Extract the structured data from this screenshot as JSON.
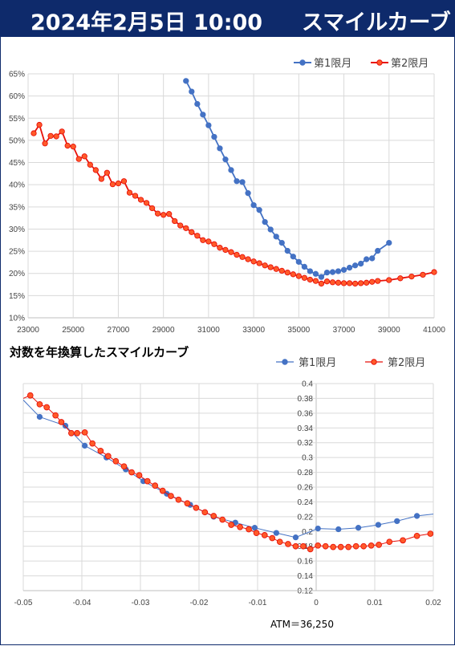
{
  "header": {
    "date": "2024年2月5日 10:00",
    "title": "スマイルカーブ"
  },
  "colors": {
    "header_bg": "#0e2a6b",
    "series1": "#4472c4",
    "series2": "#e8110a"
  },
  "chart_data": [
    {
      "type": "line",
      "title": "",
      "xlim": [
        23000,
        41000
      ],
      "ylim": [
        10,
        65
      ],
      "x_ticks": [
        "23000",
        "25000",
        "27000",
        "29000",
        "31000",
        "33000",
        "35000",
        "37000",
        "39000",
        "41000"
      ],
      "y_ticks": [
        "10%",
        "15%",
        "20%",
        "25%",
        "30%",
        "35%",
        "40%",
        "45%",
        "50%",
        "55%",
        "60%",
        "65%"
      ],
      "series": [
        {
          "name": "第1限月",
          "x": [
            30000,
            30250,
            30500,
            30750,
            31000,
            31250,
            31500,
            31750,
            32000,
            32250,
            32500,
            32750,
            33000,
            33250,
            33500,
            33750,
            34000,
            34250,
            34500,
            34750,
            35000,
            35250,
            35500,
            35750,
            36000,
            36250,
            36500,
            36750,
            37000,
            37250,
            37500,
            37750,
            38000,
            38250,
            38500,
            39000
          ],
          "y": [
            63.4,
            61.0,
            58.2,
            55.8,
            53.4,
            50.8,
            48.2,
            45.7,
            43.3,
            40.8,
            40.6,
            38.1,
            35.4,
            34.3,
            31.6,
            29.9,
            28.3,
            26.9,
            25.1,
            23.8,
            22.6,
            21.5,
            20.5,
            19.9,
            19.2,
            20.2,
            20.3,
            20.5,
            20.8,
            21.3,
            21.8,
            22.2,
            23.2,
            23.4,
            25.1,
            26.9
          ]
        },
        {
          "name": "第2限月",
          "x": [
            23250,
            23500,
            23750,
            24000,
            24250,
            24500,
            24750,
            25000,
            25250,
            25500,
            25750,
            26000,
            26250,
            26500,
            26750,
            27000,
            27250,
            27500,
            27750,
            28000,
            28250,
            28500,
            28750,
            29000,
            29250,
            29500,
            29750,
            30000,
            30250,
            30500,
            30750,
            31000,
            31250,
            31500,
            31750,
            32000,
            32250,
            32500,
            32750,
            33000,
            33250,
            33500,
            33750,
            34000,
            34250,
            34500,
            34750,
            35000,
            35250,
            35500,
            35750,
            36000,
            36250,
            36500,
            36750,
            37000,
            37250,
            37500,
            37750,
            38000,
            38250,
            38500,
            39000,
            39500,
            40000,
            40500,
            41000
          ],
          "y": [
            51.6,
            53.5,
            49.3,
            51.0,
            50.9,
            52.0,
            48.8,
            48.6,
            45.8,
            46.4,
            44.5,
            43.3,
            41.3,
            42.7,
            40.1,
            40.3,
            40.8,
            38.2,
            37.5,
            36.6,
            35.9,
            34.7,
            33.5,
            33.2,
            33.4,
            31.8,
            30.8,
            30.2,
            29.3,
            28.5,
            27.5,
            27.2,
            26.6,
            25.8,
            25.3,
            24.8,
            24.2,
            23.7,
            23.2,
            22.7,
            22.3,
            21.8,
            21.4,
            21.0,
            20.6,
            20.2,
            19.8,
            19.4,
            19.0,
            18.6,
            18.3,
            17.7,
            18.2,
            18.0,
            17.9,
            17.8,
            17.8,
            17.7,
            17.8,
            17.9,
            18.1,
            18.3,
            18.5,
            18.9,
            19.3,
            19.7,
            20.3
          ]
        }
      ]
    },
    {
      "type": "line",
      "title": "対数を年換算したスマイルカーブ",
      "xlim": [
        -0.05,
        0.02
      ],
      "ylim": [
        0.12,
        0.4
      ],
      "x_ticks": [
        "-0.05",
        "-0.04",
        "-0.03",
        "-0.02",
        "-0.01",
        "0",
        "0.01",
        "0.02"
      ],
      "y_ticks": [
        "0.12",
        "0.14",
        "0.16",
        "0.18",
        "0.2",
        "0.22",
        "0.24",
        "0.26",
        "0.28",
        "0.3",
        "0.32",
        "0.34",
        "0.36",
        "0.38",
        "0.4"
      ],
      "annotation": "ATM＝36,250",
      "series": [
        {
          "name": "第1限月",
          "x": [
            -0.0525,
            -0.0472,
            -0.0428,
            -0.0395,
            -0.0358,
            -0.0325,
            -0.0295,
            -0.0255,
            -0.0215,
            -0.0175,
            -0.0138,
            -0.0105,
            -0.0068,
            -0.0035,
            0.0003,
            0.0038,
            0.0072,
            0.0106,
            0.0138,
            0.0172,
            0.0205
          ],
          "y": [
            0.398,
            0.355,
            0.343,
            0.316,
            0.3,
            0.284,
            0.268,
            0.251,
            0.236,
            0.22,
            0.212,
            0.205,
            0.198,
            0.192,
            0.204,
            0.203,
            0.205,
            0.209,
            0.214,
            0.221,
            0.224
          ]
        },
        {
          "name": "第2限月",
          "x": [
            -0.05,
            -0.0488,
            -0.0472,
            -0.046,
            -0.0445,
            -0.0435,
            -0.0418,
            -0.0408,
            -0.0395,
            -0.0382,
            -0.0368,
            -0.0355,
            -0.0342,
            -0.0328,
            -0.0315,
            -0.0302,
            -0.0288,
            -0.0275,
            -0.0262,
            -0.0248,
            -0.0235,
            -0.022,
            -0.0205,
            -0.019,
            -0.0175,
            -0.016,
            -0.0145,
            -0.013,
            -0.0115,
            -0.0102,
            -0.0088,
            -0.0075,
            -0.0062,
            -0.0048,
            -0.0035,
            -0.0022,
            -0.001,
            0.0003,
            0.0016,
            0.0029,
            0.0042,
            0.0055,
            0.0068,
            0.0081,
            0.0094,
            0.0107,
            0.0125,
            0.0148,
            0.0172,
            0.0195
          ],
          "y": [
            0.38,
            0.384,
            0.372,
            0.368,
            0.357,
            0.348,
            0.333,
            0.333,
            0.334,
            0.319,
            0.309,
            0.302,
            0.295,
            0.288,
            0.28,
            0.276,
            0.268,
            0.262,
            0.255,
            0.248,
            0.243,
            0.238,
            0.232,
            0.226,
            0.221,
            0.216,
            0.209,
            0.206,
            0.203,
            0.198,
            0.195,
            0.191,
            0.186,
            0.183,
            0.18,
            0.18,
            0.176,
            0.181,
            0.18,
            0.179,
            0.179,
            0.179,
            0.18,
            0.18,
            0.181,
            0.182,
            0.186,
            0.188,
            0.194,
            0.197
          ]
        }
      ]
    }
  ]
}
